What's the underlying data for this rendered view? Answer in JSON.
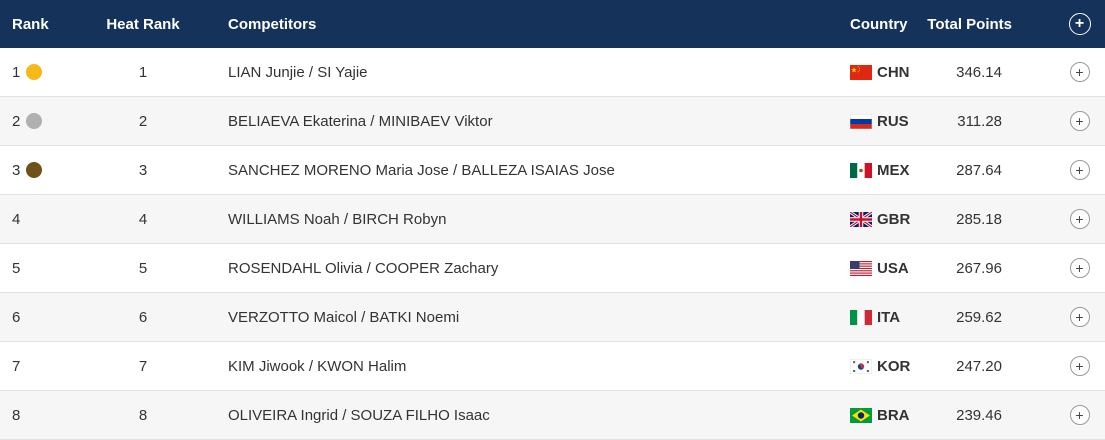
{
  "header": {
    "rank": "Rank",
    "heat_rank": "Heat Rank",
    "competitors": "Competitors",
    "country": "Country",
    "total_points": "Total Points",
    "expand_all": "+"
  },
  "colors": {
    "header_bg": "#14325a",
    "gold": "#f7b819",
    "silver": "#b0b0b0",
    "bronze": "#6e521a"
  },
  "rows": [
    {
      "rank": "1",
      "medal": "gold",
      "heat_rank": "1",
      "competitors": "LIAN Junjie / SI Yajie",
      "flag": "china-flag-icon",
      "country": "CHN",
      "points": "346.14",
      "expand": "+"
    },
    {
      "rank": "2",
      "medal": "silver",
      "heat_rank": "2",
      "competitors": "BELIAEVA Ekaterina / MINIBAEV Viktor",
      "flag": "russia-flag-icon",
      "country": "RUS",
      "points": "311.28",
      "expand": "+"
    },
    {
      "rank": "3",
      "medal": "bronze",
      "heat_rank": "3",
      "competitors": "SANCHEZ MORENO Maria Jose / BALLEZA ISAIAS Jose",
      "flag": "mexico-flag-icon",
      "country": "MEX",
      "points": "287.64",
      "expand": "+"
    },
    {
      "rank": "4",
      "medal": "",
      "heat_rank": "4",
      "competitors": "WILLIAMS Noah / BIRCH Robyn",
      "flag": "uk-flag-icon",
      "country": "GBR",
      "points": "285.18",
      "expand": "+"
    },
    {
      "rank": "5",
      "medal": "",
      "heat_rank": "5",
      "competitors": "ROSENDAHL Olivia / COOPER Zachary",
      "flag": "usa-flag-icon",
      "country": "USA",
      "points": "267.96",
      "expand": "+"
    },
    {
      "rank": "6",
      "medal": "",
      "heat_rank": "6",
      "competitors": "VERZOTTO Maicol / BATKI Noemi",
      "flag": "italy-flag-icon",
      "country": "ITA",
      "points": "259.62",
      "expand": "+"
    },
    {
      "rank": "7",
      "medal": "",
      "heat_rank": "7",
      "competitors": "KIM Jiwook / KWON Halim",
      "flag": "korea-flag-icon",
      "country": "KOR",
      "points": "247.20",
      "expand": "+"
    },
    {
      "rank": "8",
      "medal": "",
      "heat_rank": "8",
      "competitors": "OLIVEIRA Ingrid / SOUZA FILHO Isaac",
      "flag": "brazil-flag-icon",
      "country": "BRA",
      "points": "239.46",
      "expand": "+"
    }
  ]
}
